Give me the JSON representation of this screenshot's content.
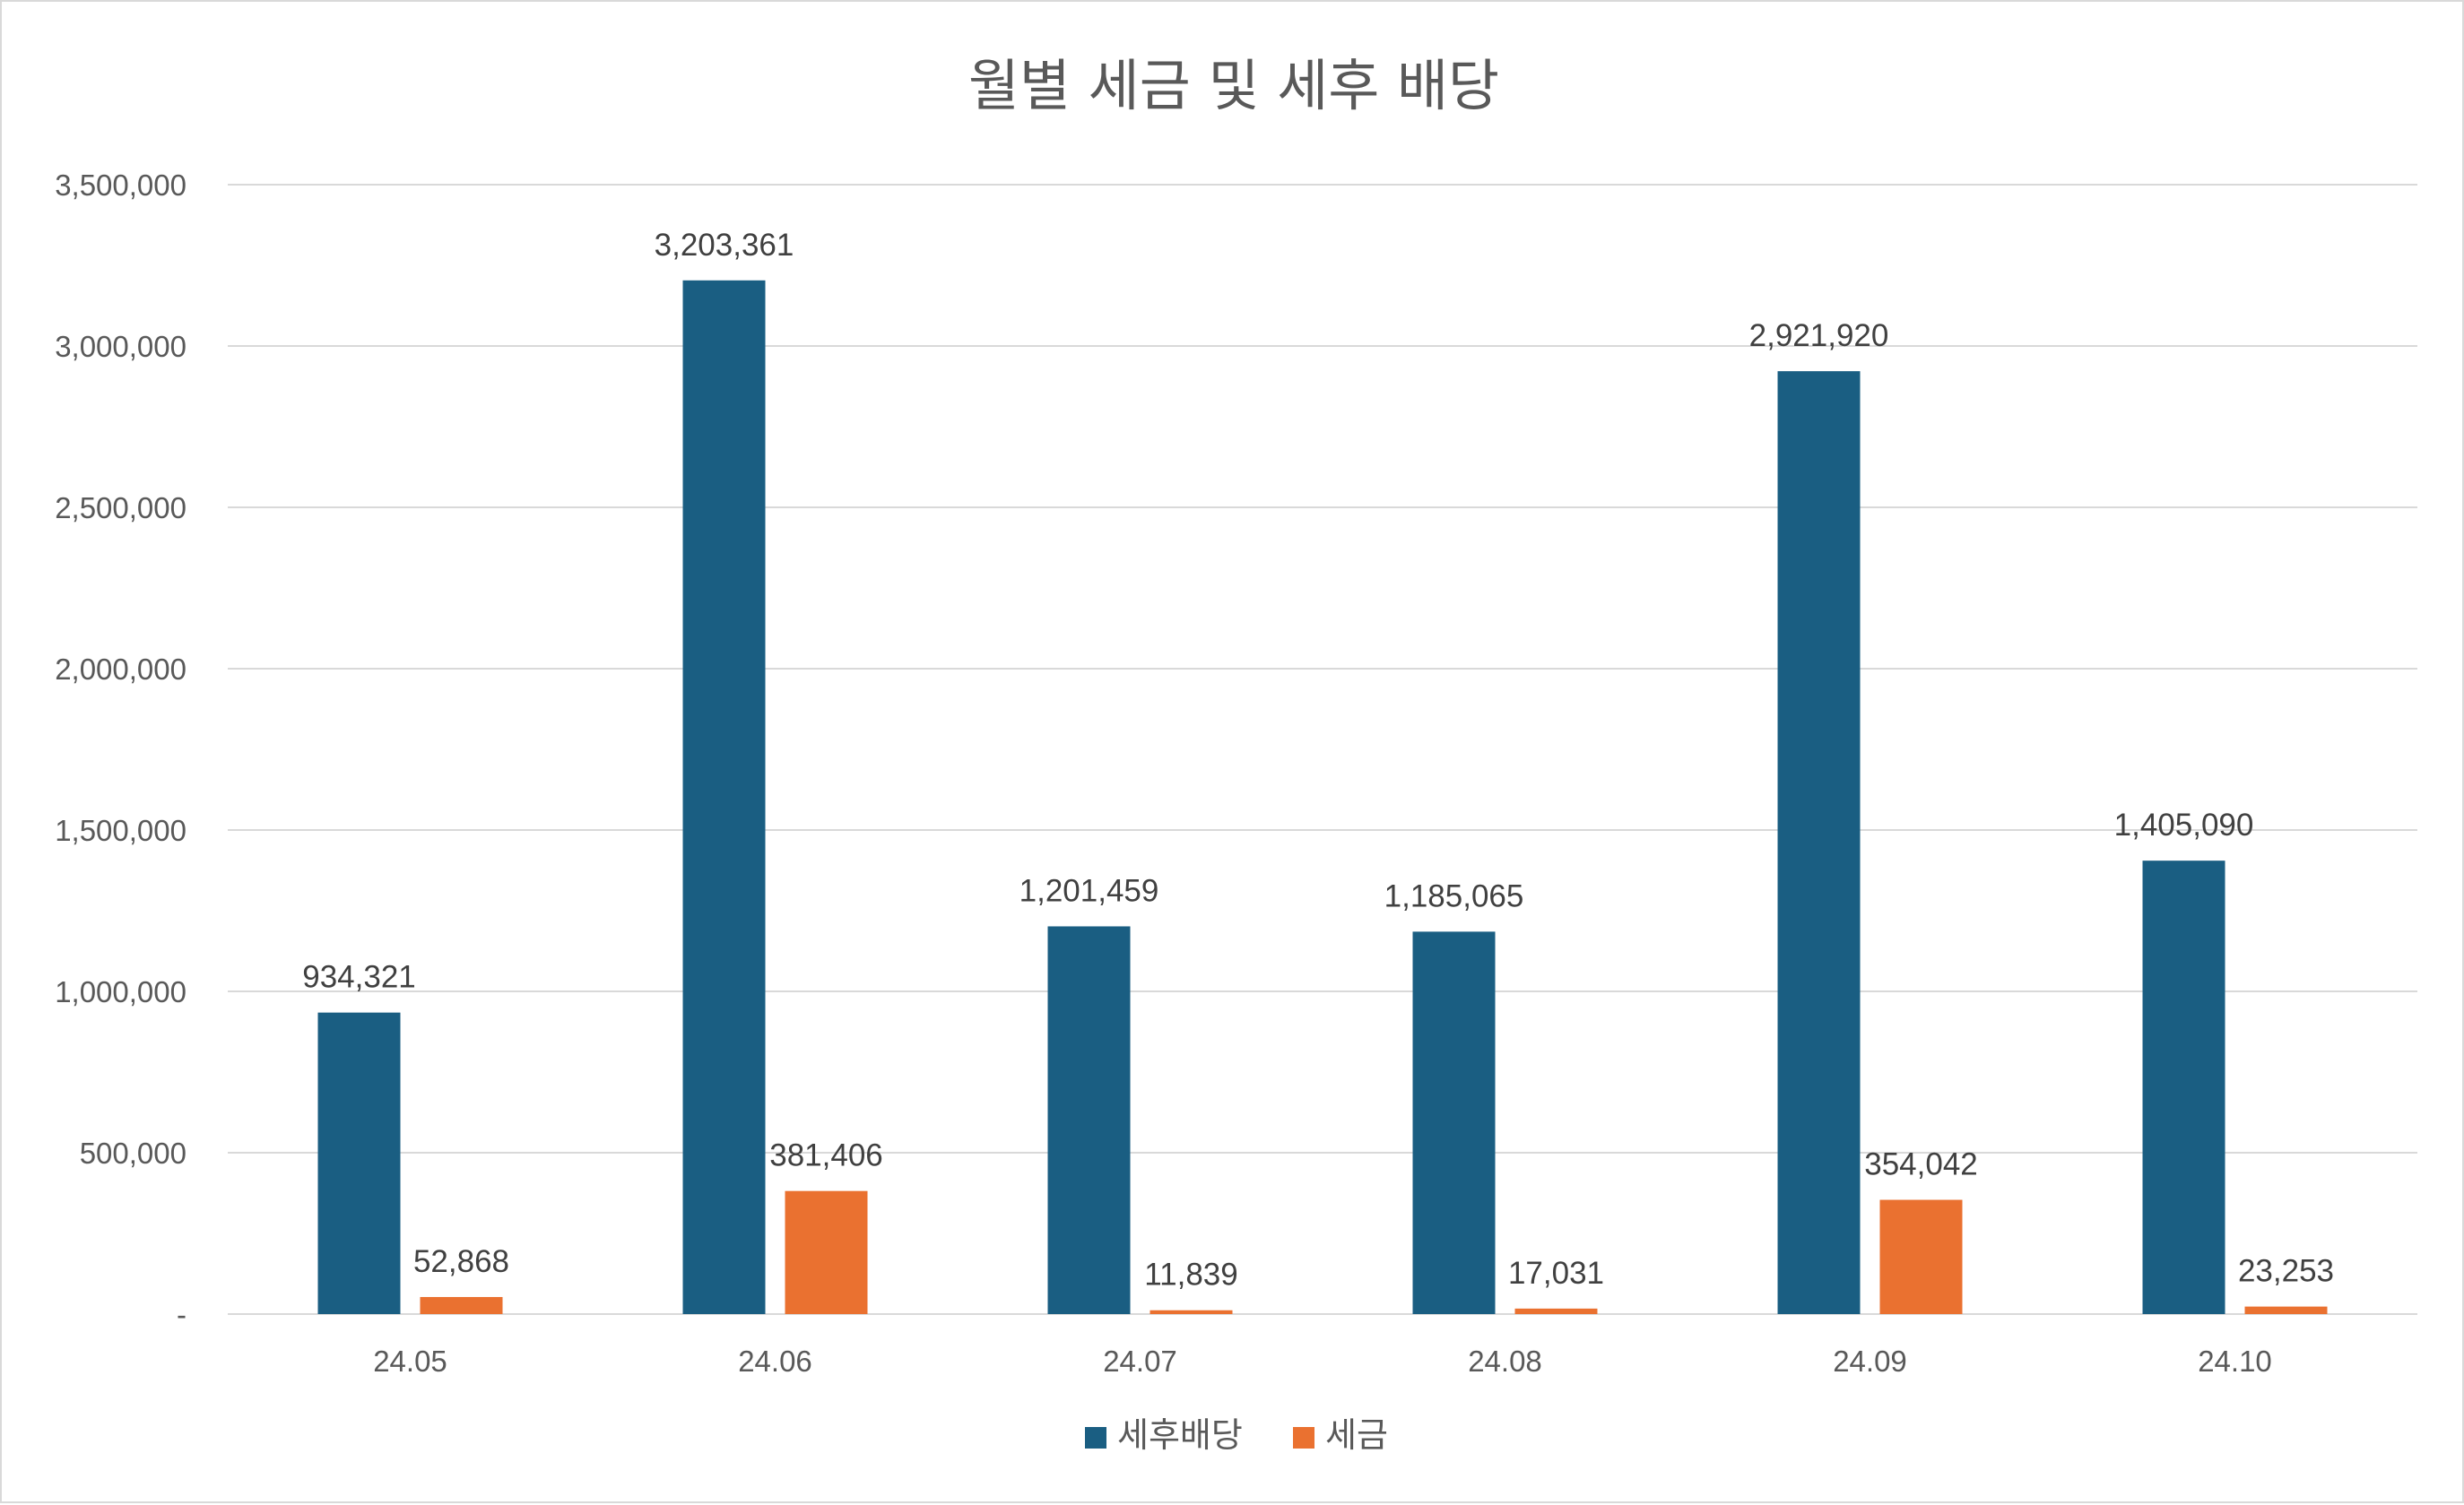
{
  "chart_data": {
    "type": "bar",
    "title": "월별 세금 및 세후 배당",
    "categories": [
      "24.05",
      "24.06",
      "24.07",
      "24.08",
      "24.09",
      "24.10"
    ],
    "series": [
      {
        "name": "세후배당",
        "color": "#1a5e82",
        "values": [
          934321,
          3203361,
          1201459,
          1185065,
          2921920,
          1405090
        ],
        "labels": [
          "934,321",
          "3,203,361",
          "1,201,459",
          "1,185,065",
          "2,921,920",
          "1,405,090"
        ]
      },
      {
        "name": "세금",
        "color": "#ea7130",
        "values": [
          52868,
          381406,
          11839,
          17031,
          354042,
          23253
        ],
        "labels": [
          "52,868",
          "381,406",
          "11,839",
          "17,031",
          "354,042",
          "23,253"
        ]
      }
    ],
    "ylim": [
      0,
      3500000
    ],
    "yticks": [
      0,
      500000,
      1000000,
      1500000,
      2000000,
      2500000,
      3000000,
      3500000
    ],
    "ytick_labels": [
      "-",
      "500,000",
      "1,000,000",
      "1,500,000",
      "2,000,000",
      "2,500,000",
      "3,000,000",
      "3,500,000"
    ],
    "xlabel": "",
    "ylabel": "",
    "grid": true,
    "legend": "bottom-center"
  }
}
